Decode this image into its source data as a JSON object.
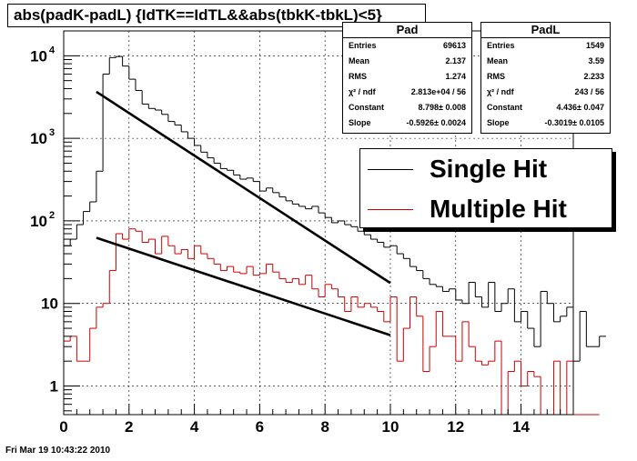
{
  "title": "abs(padK-padL) {IdTK==IdTL&&abs(tbkK-tbkL)<5}",
  "footer": "Fri Mar 19 10:43:22 2010",
  "colors": {
    "single": "#000000",
    "multiple": "#cc0000"
  },
  "stats_pad": {
    "name": "Pad",
    "rows": [
      {
        "label": "Entries",
        "value": "69613"
      },
      {
        "label": "Mean",
        "value": "2.137"
      },
      {
        "label": "RMS",
        "value": "1.274"
      },
      {
        "label": "χ² / ndf",
        "value": "2.813e+04 / 56"
      },
      {
        "label": "Constant",
        "value": "8.798± 0.008"
      },
      {
        "label": "Slope",
        "value": "-0.5926± 0.0024"
      }
    ]
  },
  "stats_padl": {
    "name": "PadL",
    "rows": [
      {
        "label": "Entries",
        "value": "1549"
      },
      {
        "label": "Mean",
        "value": "3.59"
      },
      {
        "label": "RMS",
        "value": "2.233"
      },
      {
        "label": "χ² / ndf",
        "value": "243 / 56"
      },
      {
        "label": "Constant",
        "value": "4.436± 0.047"
      },
      {
        "label": "Slope",
        "value": "-0.3019± 0.0105"
      }
    ]
  },
  "legend": {
    "single": "Single Hit",
    "multiple": "Multiple Hit"
  },
  "chart_data": {
    "type": "histogram",
    "log_y": true,
    "xlim": [
      0,
      15.6
    ],
    "ylim": [
      0.45,
      20000
    ],
    "bin_width": 0.2,
    "grid": true,
    "legend_position": "right",
    "x_ticks": [
      0,
      2,
      4,
      6,
      8,
      10,
      12,
      14
    ],
    "y_ticks": [
      {
        "value": 1,
        "label": "1"
      },
      {
        "value": 10,
        "label": "10"
      },
      {
        "value": 100,
        "label": "10",
        "exp": "2"
      },
      {
        "value": 1000,
        "label": "10",
        "exp": "3"
      },
      {
        "value": 10000,
        "label": "10",
        "exp": "4"
      }
    ],
    "series": [
      {
        "name": "Single Hit",
        "values": [
          50,
          60,
          90,
          130,
          170,
          400,
          6000,
          9500,
          9800,
          7500,
          5200,
          3800,
          2600,
          2300,
          2200,
          1950,
          1600,
          1450,
          1200,
          1000,
          820,
          680,
          580,
          500,
          430,
          410,
          360,
          320,
          330,
          300,
          230,
          250,
          220,
          195,
          175,
          160,
          150,
          140,
          150,
          125,
          110,
          95,
          100,
          90,
          85,
          75,
          68,
          60,
          55,
          48,
          50,
          40,
          35,
          28,
          25,
          20,
          17,
          16,
          14,
          15,
          11,
          10,
          18,
          12,
          9,
          18,
          8,
          10,
          15,
          6,
          8,
          5,
          3,
          14,
          10,
          6,
          7,
          9,
          2,
          8,
          3,
          3,
          4
        ]
      },
      {
        "name": "Multiple Hit",
        "values": [
          3.5,
          4,
          2,
          2,
          5,
          9,
          10,
          25,
          70,
          60,
          80,
          75,
          55,
          60,
          40,
          65,
          50,
          40,
          45,
          35,
          50,
          40,
          35,
          30,
          25,
          28,
          24,
          23,
          28,
          22,
          23,
          30,
          24,
          20,
          18,
          20,
          17,
          22,
          15,
          12,
          17,
          15,
          12,
          8,
          12,
          9,
          10,
          9,
          8,
          6,
          12,
          2,
          5,
          12,
          7,
          1.5,
          3,
          8,
          4,
          4,
          2,
          6,
          3,
          2,
          1.8,
          2,
          3.5,
          0.45,
          1.5,
          2,
          1,
          1.5,
          1.3,
          0.45,
          0.45,
          2,
          0.45,
          2,
          0.45,
          0.45,
          0.45,
          0.45
        ]
      }
    ],
    "fits": [
      {
        "series": "Single Hit",
        "constant": 8.798,
        "slope": -0.5926,
        "range": [
          1,
          10
        ]
      },
      {
        "series": "Multiple Hit",
        "constant": 4.436,
        "slope": -0.3019,
        "range": [
          1,
          10
        ]
      }
    ]
  }
}
